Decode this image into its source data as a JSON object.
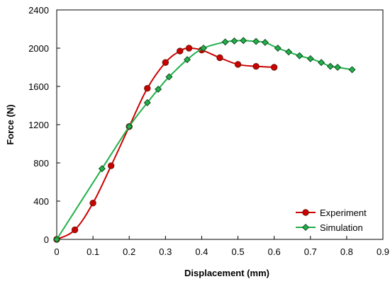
{
  "chart_data": {
    "type": "line",
    "xlabel": "Displacement (mm)",
    "ylabel": "Force (N)",
    "xlim": [
      0,
      0.9
    ],
    "ylim": [
      0,
      2400
    ],
    "x_ticks": [
      0,
      0.1,
      0.2,
      0.3,
      0.4,
      0.5,
      0.6,
      0.7,
      0.8,
      0.9
    ],
    "x_tick_labels": [
      "0",
      "0.1",
      "0.2",
      "0.3",
      "0.4",
      "0.5",
      "0.6",
      "0.7",
      "0.8",
      "0.9"
    ],
    "y_ticks": [
      0,
      400,
      800,
      1200,
      1600,
      2000,
      2400
    ],
    "y_tick_labels": [
      "0",
      "400",
      "800",
      "1200",
      "1600",
      "2000",
      "2400"
    ],
    "grid": false,
    "legend_position": "bottom-right",
    "series": [
      {
        "name": "Experiment",
        "color": "#cc0000",
        "marker": "circle",
        "points": [
          [
            0,
            0
          ],
          [
            0.05,
            100
          ],
          [
            0.1,
            380
          ],
          [
            0.15,
            770
          ],
          [
            0.2,
            1180
          ],
          [
            0.25,
            1580
          ],
          [
            0.3,
            1850
          ],
          [
            0.34,
            1970
          ],
          [
            0.365,
            2000
          ],
          [
            0.4,
            1980
          ],
          [
            0.45,
            1900
          ],
          [
            0.5,
            1830
          ],
          [
            0.55,
            1810
          ],
          [
            0.6,
            1800
          ]
        ]
      },
      {
        "name": "Simulation",
        "color": "#22b04b",
        "marker": "diamond",
        "points": [
          [
            0,
            0
          ],
          [
            0.125,
            740
          ],
          [
            0.2,
            1180
          ],
          [
            0.25,
            1430
          ],
          [
            0.28,
            1570
          ],
          [
            0.31,
            1700
          ],
          [
            0.36,
            1880
          ],
          [
            0.405,
            2000
          ],
          [
            0.465,
            2065
          ],
          [
            0.49,
            2075
          ],
          [
            0.515,
            2080
          ],
          [
            0.55,
            2070
          ],
          [
            0.575,
            2060
          ],
          [
            0.61,
            2000
          ],
          [
            0.64,
            1960
          ],
          [
            0.67,
            1920
          ],
          [
            0.7,
            1890
          ],
          [
            0.73,
            1850
          ],
          [
            0.755,
            1810
          ],
          [
            0.775,
            1800
          ],
          [
            0.815,
            1775
          ]
        ]
      }
    ]
  }
}
